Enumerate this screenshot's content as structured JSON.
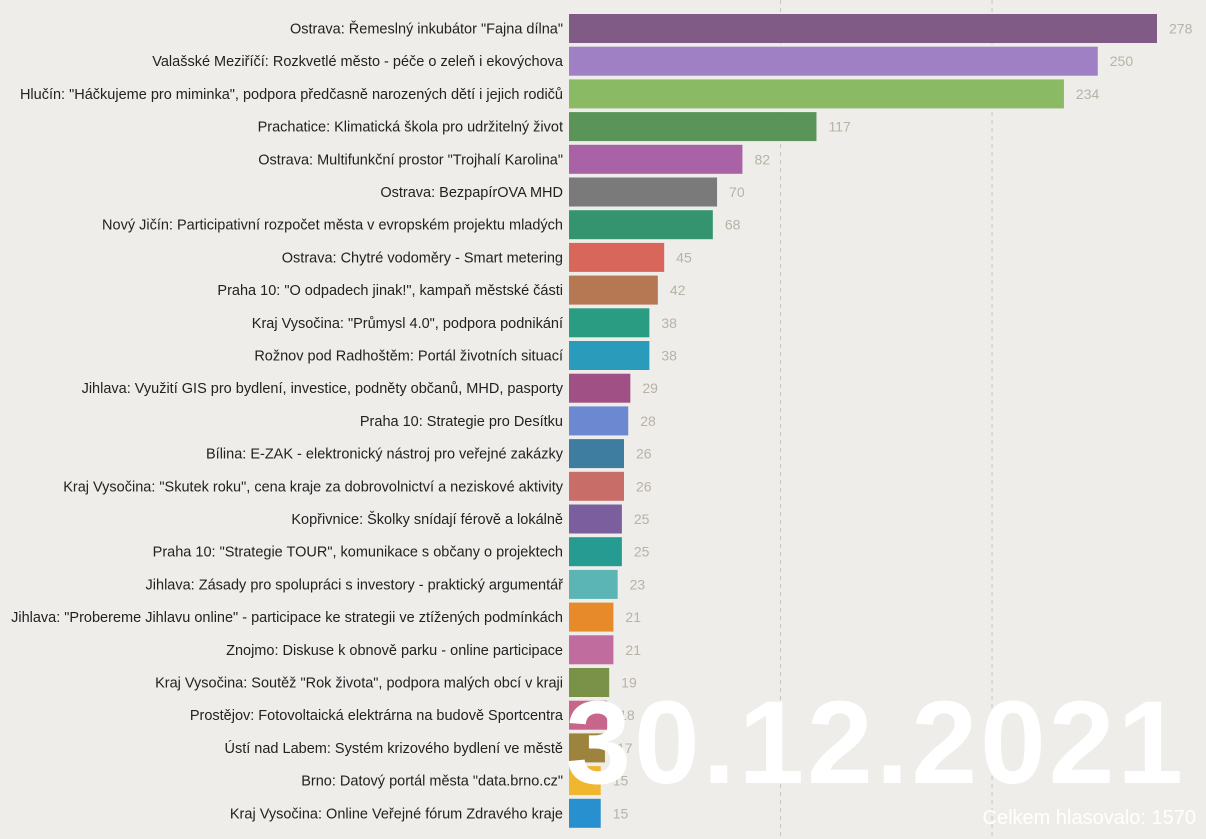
{
  "chart_data": {
    "type": "bar",
    "orientation": "horizontal",
    "xlim": [
      0,
      278
    ],
    "grid": "vertical dashed",
    "categories": [
      "Ostrava: Řemeslný inkubátor \"Fajna dílna\"",
      "Valašské Meziříčí: Rozkvetlé město - péče o zeleň i ekovýchova",
      "Hlučín: \"Háčkujeme pro miminka\", podpora předčasně narozených dětí i jejich rodičů",
      "Prachatice: Klimatická škola pro udržitelný život",
      "Ostrava: Multifunkční prostor \"Trojhalí Karolina\"",
      "Ostrava: BezpapírOVA MHD",
      "Nový Jičín: Participativní rozpočet města v evropském projektu mladých",
      "Ostrava: Chytré vodoměry - Smart metering",
      "Praha 10: \"O odpadech jinak!\", kampaň městské části",
      "Kraj Vysočina: \"Průmysl 4.0\", podpora podnikání",
      "Rožnov pod Radhoštěm: Portál životních situací",
      "Jihlava: Využití GIS pro bydlení, investice, podněty občanů, MHD, pasporty",
      "Praha 10: Strategie pro Desítku",
      "Bílina: E-ZAK - elektronický nástroj pro veřejné zakázky",
      "Kraj Vysočina: \"Skutek roku\", cena kraje za dobrovolnictví a neziskové aktivity",
      "Kopřivnice: Školky snídají férově a lokálně",
      "Praha 10: \"Strategie TOUR\", komunikace s občany o projektech",
      "Jihlava: Zásady pro spolupráci s investory - praktický argumentář",
      "Jihlava: \"Probereme Jihlavu online\" - participace ke strategii ve ztížených podmínkách",
      "Znojmo: Diskuse k obnově parku - online participace",
      "Kraj Vysočina: Soutěž \"Rok života\", podpora malých obcí v kraji",
      "Prostějov: Fotovoltaická elektrárna na budově Sportcentra",
      "Ústí nad Labem: Systém krizového bydlení ve městě",
      "Brno: Datový portál města \"data.brno.cz\"",
      "Kraj Vysočina: Online Veřejné fórum Zdravého kraje"
    ],
    "values": [
      278,
      250,
      234,
      117,
      82,
      70,
      68,
      45,
      42,
      38,
      38,
      29,
      28,
      26,
      26,
      25,
      25,
      23,
      21,
      21,
      19,
      18,
      17,
      15,
      15
    ],
    "colors": [
      "#7f5b85",
      "#9f80c4",
      "#8abb64",
      "#5b9458",
      "#a862a5",
      "#7a7a7a",
      "#359470",
      "#d9665a",
      "#b57852",
      "#2a9c82",
      "#2b9bbc",
      "#a15086",
      "#6b88d0",
      "#3f7da0",
      "#c96d69",
      "#7a5e9e",
      "#259b91",
      "#5cb5b5",
      "#e68a2a",
      "#c06c9e",
      "#7a9148",
      "#c7668a",
      "#9c843e",
      "#f0b630",
      "#2990d0"
    ],
    "annotations": {
      "date": "30.12.2021",
      "total": "Celkem hlasovalo: 1570"
    }
  }
}
